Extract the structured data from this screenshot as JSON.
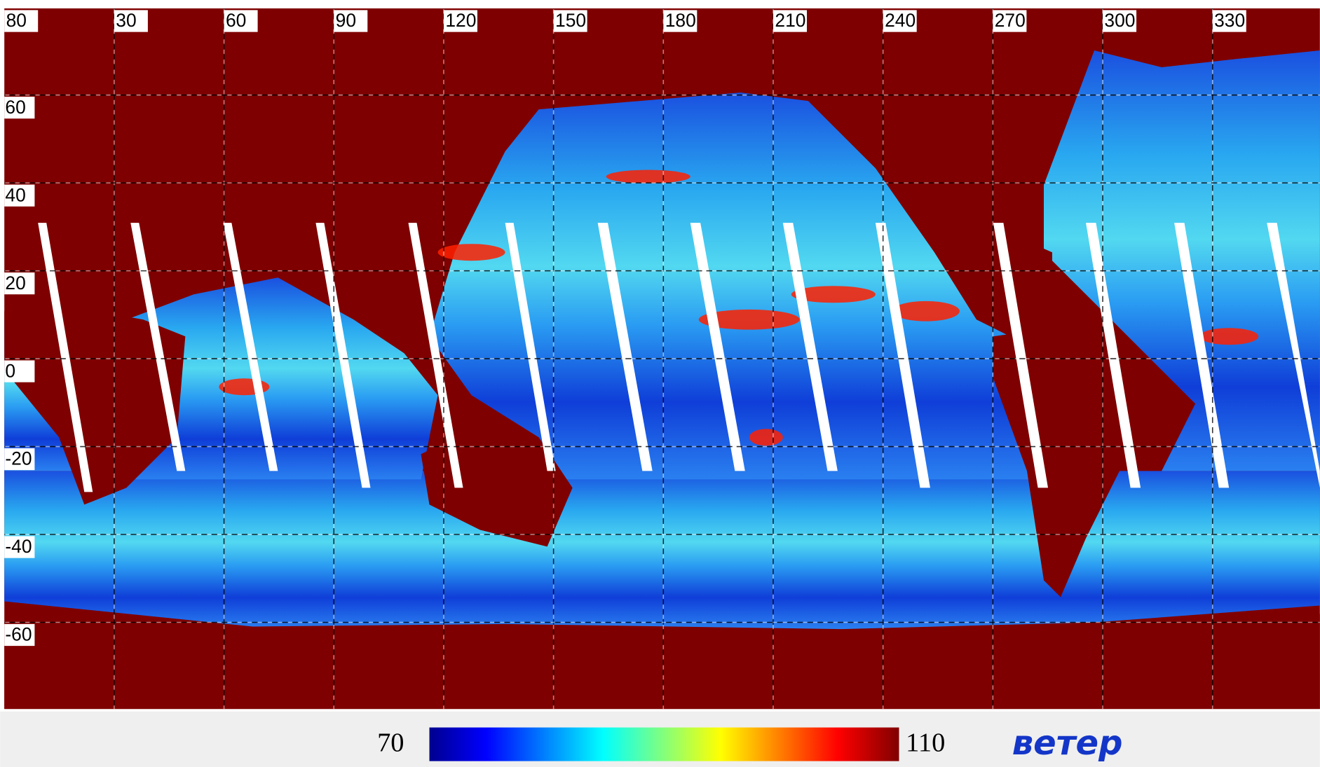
{
  "map": {
    "lon_labels": [
      "80",
      "30",
      "60",
      "90",
      "120",
      "150",
      "180",
      "210",
      "240",
      "270",
      "300",
      "330"
    ],
    "lat_labels": [
      "60",
      "40",
      "20",
      "0",
      "-20",
      "-40",
      "-60"
    ]
  },
  "colorbar": {
    "min": 70,
    "max": 110,
    "label": "ветер"
  }
}
